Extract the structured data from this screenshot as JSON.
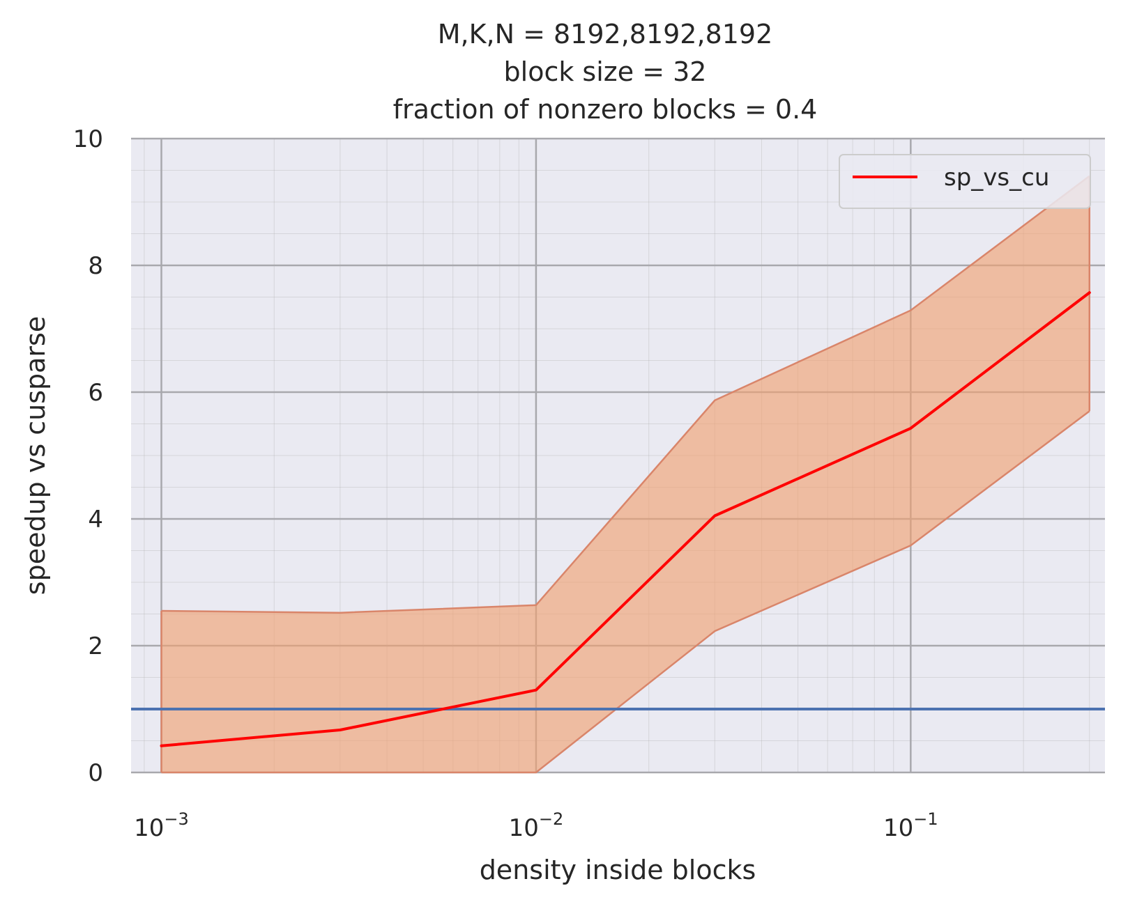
{
  "chart_data": {
    "type": "line",
    "title_lines": [
      "M,K,N = 8192,8192,8192",
      "block size = 32",
      "fraction of nonzero blocks = 0.4"
    ],
    "xlabel": "density inside blocks",
    "ylabel": "speedup vs cusparse",
    "xscale": "log",
    "xlim": [
      0.00083,
      0.33
    ],
    "ylim": [
      0,
      10
    ],
    "yticks": [
      0,
      2,
      4,
      6,
      8,
      10
    ],
    "xticks": [
      {
        "value": 0.001,
        "base": "10",
        "exp": "−3"
      },
      {
        "value": 0.01,
        "base": "10",
        "exp": "−2"
      },
      {
        "value": 0.1,
        "base": "10",
        "exp": "−1"
      }
    ],
    "grid": true,
    "legend": {
      "position": "top-right",
      "entries": [
        "sp_vs_cu"
      ]
    },
    "series": [
      {
        "name": "sp_vs_cu",
        "color": "#ff0000",
        "x": [
          0.001,
          0.003,
          0.01,
          0.03,
          0.1,
          0.3
        ],
        "values": [
          0.42,
          0.67,
          1.3,
          4.05,
          5.43,
          7.57
        ]
      }
    ],
    "band": {
      "color": "#f0a070",
      "edge_color": "#d9856a",
      "x": [
        0.001,
        0.003,
        0.01,
        0.03,
        0.1,
        0.3
      ],
      "upper": [
        2.55,
        2.52,
        2.64,
        5.87,
        7.29,
        9.41
      ],
      "lower": [
        0,
        0,
        0,
        2.23,
        3.58,
        5.7
      ]
    },
    "reference_line": {
      "y": 1.0,
      "color": "#4c72b0"
    }
  }
}
